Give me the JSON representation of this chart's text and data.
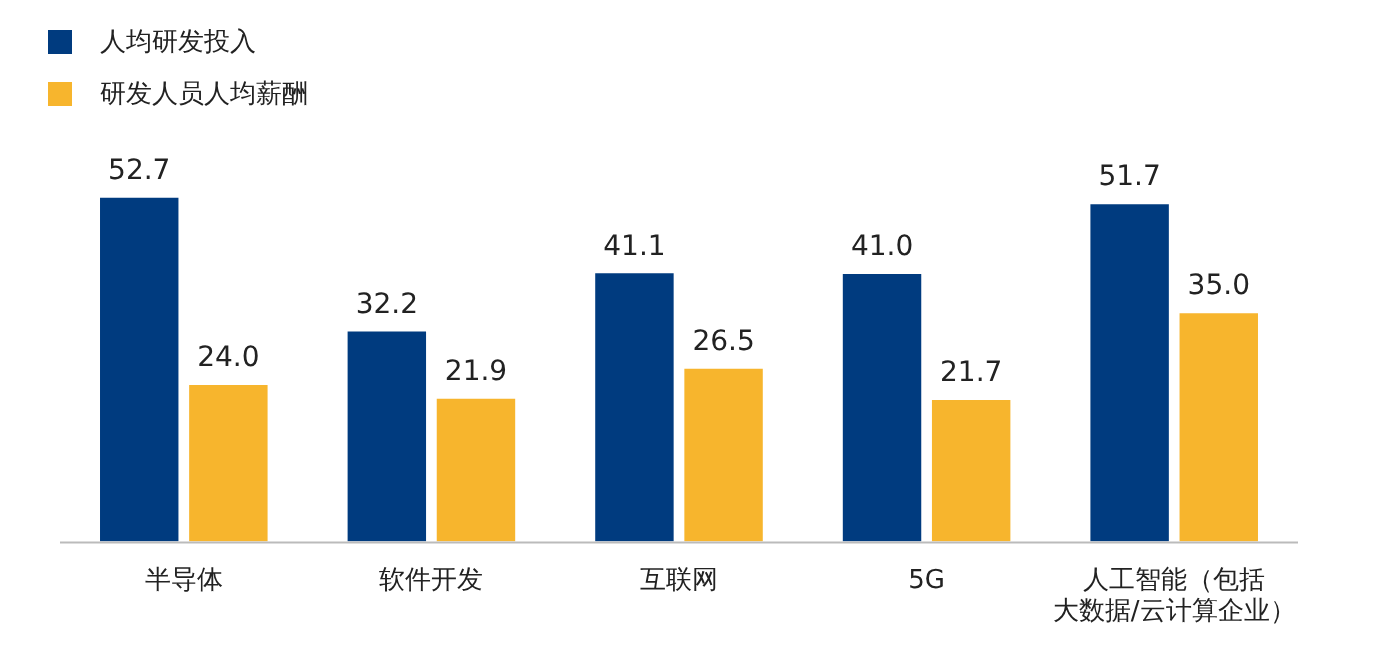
{
  "chart_data": {
    "type": "bar",
    "categories": [
      "半导体",
      "软件开发",
      "互联网",
      "5G",
      "人工智能（包括大数据/云计算企业）"
    ],
    "series": [
      {
        "name": "人均研发投入",
        "color": "#003b7f",
        "values": [
          52.7,
          32.2,
          41.1,
          41.0,
          51.7
        ],
        "value_labels": [
          "52.7",
          "32.2",
          "41.1",
          "41.0",
          "51.7"
        ]
      },
      {
        "name": "研发人员人均薪酬",
        "color": "#f7b52d",
        "values": [
          24.0,
          21.9,
          26.5,
          21.7,
          35.0
        ],
        "value_labels": [
          "24.0",
          "21.9",
          "26.5",
          "21.7",
          "35.0"
        ]
      }
    ],
    "relative": false,
    "grid": false,
    "legend": "top left"
  }
}
